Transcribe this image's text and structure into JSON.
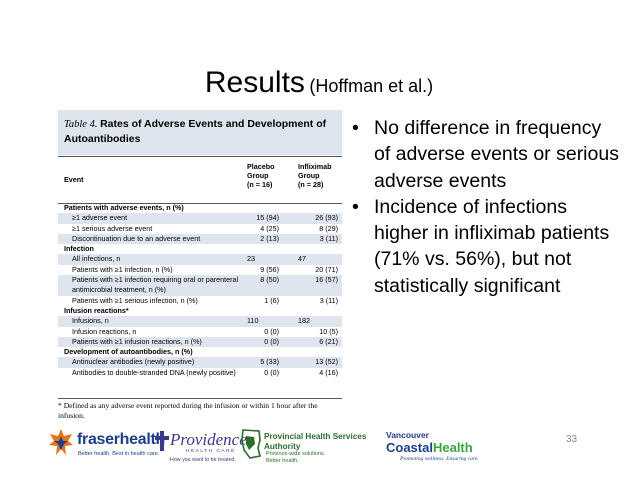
{
  "slide": {
    "title": "Results",
    "title_sub": "(Hoffman et al.)",
    "page_number": "33"
  },
  "table": {
    "caption_label": "Table 4.",
    "caption_title": "Rates of Adverse Events and Development of Autoantibodies",
    "headers": {
      "event": "Event",
      "placebo": [
        "Placebo",
        "Group",
        "(n = 16)"
      ],
      "infliximab": [
        "Infliximab",
        "Group",
        "(n = 28)"
      ]
    },
    "rows": [
      {
        "type": "section",
        "event": "Patients with adverse events, n (%)",
        "placebo": "",
        "infliximab": ""
      },
      {
        "type": "item",
        "event": "≥1 adverse event",
        "placebo": "15 (94)",
        "infliximab": "26 (93)",
        "shade": true
      },
      {
        "type": "item",
        "event": "≥1 serious adverse event",
        "placebo": "4 (25)",
        "infliximab": "8 (29)",
        "shade": false
      },
      {
        "type": "item",
        "event": "Discontinuation due to an adverse event",
        "placebo": "2 (13)",
        "infliximab": "3 (11)",
        "shade": true
      },
      {
        "type": "section",
        "event": "Infection",
        "placebo": "",
        "infliximab": ""
      },
      {
        "type": "item",
        "event": "All infections, n",
        "placebo": "23",
        "infliximab": "47",
        "shade": true,
        "left": true
      },
      {
        "type": "item",
        "event": "Patients with ≥1 infection, n (%)",
        "placebo": "9 (56)",
        "infliximab": "20 (71)",
        "shade": false
      },
      {
        "type": "item",
        "event": "Patients with ≥1 infection requiring oral or parenteral antimicrobial treatment, n (%)",
        "placebo": "8 (50)",
        "infliximab": "16 (57)",
        "shade": true,
        "tall": true
      },
      {
        "type": "item",
        "event": "Patients with ≥1 serious infection, n (%)",
        "placebo": "1 (6)",
        "infliximab": "3 (11)",
        "shade": false
      },
      {
        "type": "section",
        "event": "Infusion reactions*",
        "placebo": "",
        "infliximab": ""
      },
      {
        "type": "item",
        "event": "Infusions, n",
        "placebo": "110",
        "infliximab": "182",
        "shade": true,
        "left": true
      },
      {
        "type": "item",
        "event": "Infusion reactions, n",
        "placebo": "0 (0)",
        "infliximab": "10 (5)",
        "shade": false
      },
      {
        "type": "item",
        "event": "Patients with ≥1 infusion reactions, n (%)",
        "placebo": "0 (0)",
        "infliximab": "6 (21)",
        "shade": true
      },
      {
        "type": "section",
        "event": "Development of autoantibodies, n (%)",
        "placebo": "",
        "infliximab": ""
      },
      {
        "type": "item",
        "event": "Antinuclear antibodies (newly positive)",
        "placebo": "5 (33)",
        "infliximab": "13 (52)",
        "shade": true
      },
      {
        "type": "item",
        "event": "Antibodies to double-stranded DNA (newly positive)",
        "placebo": "0 (0)",
        "infliximab": "4 (16)",
        "shade": false,
        "tall": true
      }
    ],
    "footnote": "* Defined as any adverse event reported during the infusion or within 1 hour after the infusion."
  },
  "bullets": [
    "No difference in frequency of adverse events or serious adverse events",
    "Incidence of infections higher in infliximab patients (71% vs. 56%), but not statistically significant"
  ],
  "logos": {
    "fraser": {
      "name": "fraserhealth",
      "tagline": "Better health. Best in health care."
    },
    "providence": {
      "name": "Providence",
      "sub": "HEALTH CARE",
      "tagline": "How you want to be treated."
    },
    "phsa": {
      "name": "Provincial Health Services Authority",
      "tagline": "Province-wide solutions. Better health."
    },
    "vch": {
      "name_top": "Vancouver",
      "name_main_a": "Coastal",
      "name_main_b": "Health",
      "tagline": "Promoting wellness. Ensuring care."
    }
  },
  "colors": {
    "table_shade": "#dfe5ee",
    "fraser_blue": "#1b3f8b",
    "fraser_orange": "#e8731a",
    "phsa_green": "#2c6e2c",
    "vch_green": "#3aa63a"
  }
}
